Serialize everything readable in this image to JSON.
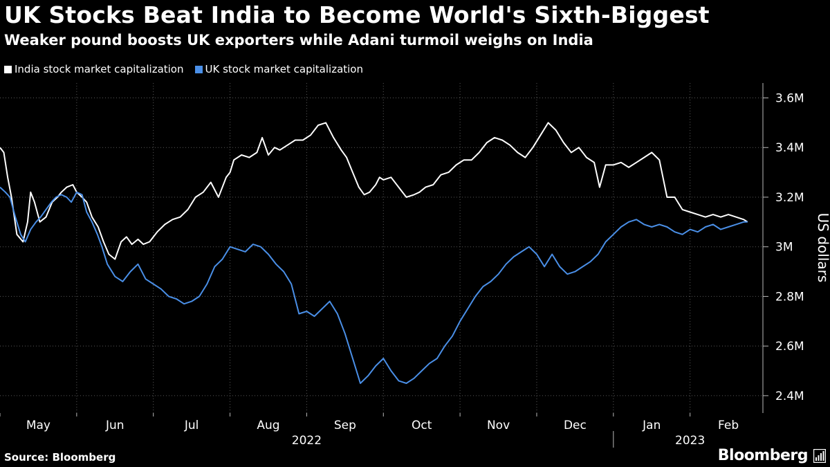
{
  "title": "UK Stocks Beat India to Become World's Sixth-Biggest",
  "subtitle": "Weaker pound boosts UK exporters while Adani turmoil weighs on India",
  "source": "Source: Bloomberg",
  "brand": "Bloomberg",
  "colors": {
    "india": "#ffffff",
    "uk": "#4a8fe7",
    "grid": "#5a5a5a",
    "background": "#000000"
  },
  "chart_data": {
    "type": "line",
    "title": "UK Stocks Beat India to Become World's Sixth-Biggest",
    "ylabel": "US dollars",
    "ylim": [
      2.33,
      3.66
    ],
    "yticks": [
      {
        "value": 2.4,
        "label": "2.4M"
      },
      {
        "value": 2.6,
        "label": "2.6M"
      },
      {
        "value": 2.8,
        "label": "2.8M"
      },
      {
        "value": 3.0,
        "label": "3M"
      },
      {
        "value": 3.2,
        "label": "3.2M"
      },
      {
        "value": 3.4,
        "label": "3.4M"
      },
      {
        "value": 3.6,
        "label": "3.6M"
      }
    ],
    "xlim": [
      0,
      9.95
    ],
    "xticks": [
      {
        "value": 0.5,
        "label": "May"
      },
      {
        "value": 1.5,
        "label": "Jun"
      },
      {
        "value": 2.5,
        "label": "Jul"
      },
      {
        "value": 3.5,
        "label": "Aug"
      },
      {
        "value": 4.5,
        "label": "Sep"
      },
      {
        "value": 5.5,
        "label": "Oct"
      },
      {
        "value": 6.5,
        "label": "Nov"
      },
      {
        "value": 7.5,
        "label": "Dec"
      },
      {
        "value": 8.5,
        "label": "Jan"
      },
      {
        "value": 9.5,
        "label": "Feb"
      }
    ],
    "years": [
      {
        "label": "2022",
        "center": 4.0
      },
      {
        "label": "2023",
        "center": 9.0
      }
    ],
    "year_divider": 8.0,
    "legend": [
      "India stock market capitalization",
      "UK stock market capitalization"
    ],
    "series": [
      {
        "name": "India stock market capitalization",
        "x": [
          0,
          0.05,
          0.1,
          0.15,
          0.22,
          0.3,
          0.36,
          0.4,
          0.45,
          0.52,
          0.6,
          0.68,
          0.75,
          0.8,
          0.87,
          0.95,
          1.0,
          1.07,
          1.13,
          1.2,
          1.28,
          1.35,
          1.42,
          1.5,
          1.58,
          1.65,
          1.72,
          1.8,
          1.87,
          1.95,
          2.05,
          2.15,
          2.25,
          2.35,
          2.45,
          2.55,
          2.65,
          2.75,
          2.85,
          2.95,
          3.0,
          3.05,
          3.15,
          3.25,
          3.35,
          3.42,
          3.5,
          3.58,
          3.65,
          3.75,
          3.85,
          3.95,
          4.05,
          4.15,
          4.25,
          4.35,
          4.45,
          4.52,
          4.6,
          4.68,
          4.75,
          4.82,
          4.9,
          4.95,
          5.0,
          5.1,
          5.2,
          5.3,
          5.4,
          5.47,
          5.55,
          5.65,
          5.75,
          5.85,
          5.95,
          6.05,
          6.15,
          6.25,
          6.35,
          6.45,
          6.55,
          6.65,
          6.75,
          6.85,
          6.95,
          7.05,
          7.15,
          7.25,
          7.35,
          7.45,
          7.55,
          7.65,
          7.75,
          7.82,
          7.9,
          8.0,
          8.1,
          8.2,
          8.3,
          8.4,
          8.5,
          8.6,
          8.7,
          8.8,
          8.9,
          9.0,
          9.1,
          9.2,
          9.3,
          9.4,
          9.5,
          9.6,
          9.7,
          9.75
        ],
        "values": [
          3.4,
          3.38,
          3.28,
          3.2,
          3.05,
          3.02,
          3.1,
          3.22,
          3.18,
          3.1,
          3.12,
          3.18,
          3.2,
          3.22,
          3.24,
          3.25,
          3.22,
          3.2,
          3.18,
          3.12,
          3.08,
          3.02,
          2.97,
          2.95,
          3.02,
          3.04,
          3.01,
          3.03,
          3.01,
          3.02,
          3.06,
          3.09,
          3.11,
          3.12,
          3.15,
          3.2,
          3.22,
          3.26,
          3.2,
          3.28,
          3.3,
          3.35,
          3.37,
          3.36,
          3.38,
          3.44,
          3.37,
          3.4,
          3.39,
          3.41,
          3.43,
          3.43,
          3.45,
          3.49,
          3.5,
          3.44,
          3.39,
          3.36,
          3.3,
          3.24,
          3.21,
          3.22,
          3.25,
          3.28,
          3.27,
          3.28,
          3.24,
          3.2,
          3.21,
          3.22,
          3.24,
          3.25,
          3.29,
          3.3,
          3.33,
          3.35,
          3.35,
          3.38,
          3.42,
          3.44,
          3.43,
          3.41,
          3.38,
          3.36,
          3.4,
          3.45,
          3.5,
          3.47,
          3.42,
          3.38,
          3.4,
          3.36,
          3.34,
          3.24,
          3.33,
          3.33,
          3.34,
          3.32,
          3.34,
          3.36,
          3.38,
          3.35,
          3.2,
          3.2,
          3.15,
          3.14,
          3.13,
          3.12,
          3.13,
          3.12,
          3.13,
          3.12,
          3.11,
          3.1
        ]
      },
      {
        "name": "UK stock market capitalization",
        "x": [
          0,
          0.07,
          0.13,
          0.2,
          0.27,
          0.33,
          0.4,
          0.47,
          0.53,
          0.6,
          0.67,
          0.73,
          0.8,
          0.87,
          0.93,
          1.0,
          1.07,
          1.13,
          1.2,
          1.27,
          1.33,
          1.4,
          1.5,
          1.6,
          1.7,
          1.8,
          1.9,
          2.0,
          2.1,
          2.2,
          2.3,
          2.4,
          2.5,
          2.6,
          2.7,
          2.8,
          2.9,
          3.0,
          3.1,
          3.2,
          3.3,
          3.4,
          3.5,
          3.6,
          3.7,
          3.8,
          3.9,
          4.0,
          4.1,
          4.2,
          4.3,
          4.4,
          4.5,
          4.6,
          4.7,
          4.8,
          4.9,
          5.0,
          5.1,
          5.2,
          5.3,
          5.4,
          5.5,
          5.6,
          5.7,
          5.8,
          5.9,
          6.0,
          6.1,
          6.2,
          6.3,
          6.4,
          6.5,
          6.6,
          6.7,
          6.8,
          6.9,
          7.0,
          7.1,
          7.2,
          7.3,
          7.4,
          7.5,
          7.6,
          7.7,
          7.8,
          7.9,
          8.0,
          8.1,
          8.2,
          8.3,
          8.4,
          8.5,
          8.6,
          8.7,
          8.8,
          8.9,
          9.0,
          9.1,
          9.2,
          9.3,
          9.4,
          9.5,
          9.6,
          9.7,
          9.75
        ],
        "values": [
          3.24,
          3.22,
          3.2,
          3.12,
          3.05,
          3.02,
          3.07,
          3.1,
          3.12,
          3.15,
          3.18,
          3.2,
          3.21,
          3.2,
          3.18,
          3.22,
          3.21,
          3.14,
          3.1,
          3.05,
          3.0,
          2.93,
          2.88,
          2.86,
          2.9,
          2.93,
          2.87,
          2.85,
          2.83,
          2.8,
          2.79,
          2.77,
          2.78,
          2.8,
          2.85,
          2.92,
          2.95,
          3.0,
          2.99,
          2.98,
          3.01,
          3.0,
          2.97,
          2.93,
          2.9,
          2.85,
          2.73,
          2.74,
          2.72,
          2.75,
          2.78,
          2.73,
          2.65,
          2.55,
          2.45,
          2.48,
          2.52,
          2.55,
          2.5,
          2.46,
          2.45,
          2.47,
          2.5,
          2.53,
          2.55,
          2.6,
          2.64,
          2.7,
          2.75,
          2.8,
          2.84,
          2.86,
          2.89,
          2.93,
          2.96,
          2.98,
          3.0,
          2.97,
          2.92,
          2.97,
          2.92,
          2.89,
          2.9,
          2.92,
          2.94,
          2.97,
          3.02,
          3.05,
          3.08,
          3.1,
          3.11,
          3.09,
          3.08,
          3.09,
          3.08,
          3.06,
          3.05,
          3.07,
          3.06,
          3.08,
          3.09,
          3.07,
          3.08,
          3.09,
          3.1,
          3.1
        ]
      }
    ]
  }
}
